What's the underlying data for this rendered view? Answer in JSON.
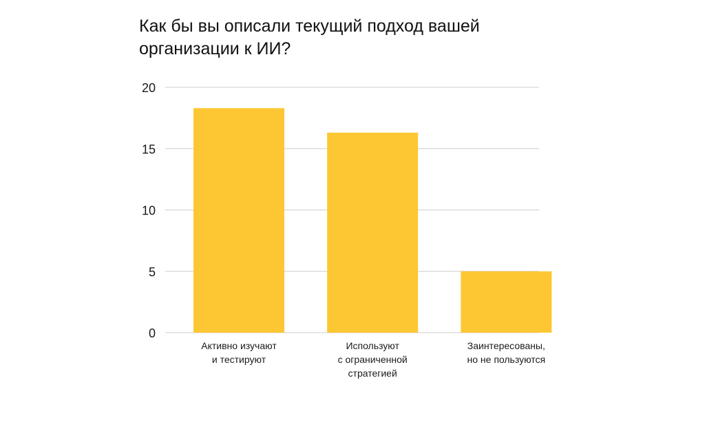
{
  "chart_data": {
    "type": "bar",
    "title": "Как бы вы описали текущий подход вашей\nорганизации к ИИ?",
    "categories": [
      "Активно изучают\nи тестируют",
      "Используют\nс ограниченной\nстратегией",
      "Заинтересованы,\nно не пользуются"
    ],
    "values": [
      18.3,
      16.3,
      5
    ],
    "ylim": [
      0,
      20
    ],
    "yticks": [
      "0",
      "5",
      "10",
      "15",
      "20"
    ],
    "xlabel": "",
    "ylabel": "",
    "grid": true,
    "bar_color": "#FDC633",
    "grid_color": "#CCCCCC"
  }
}
